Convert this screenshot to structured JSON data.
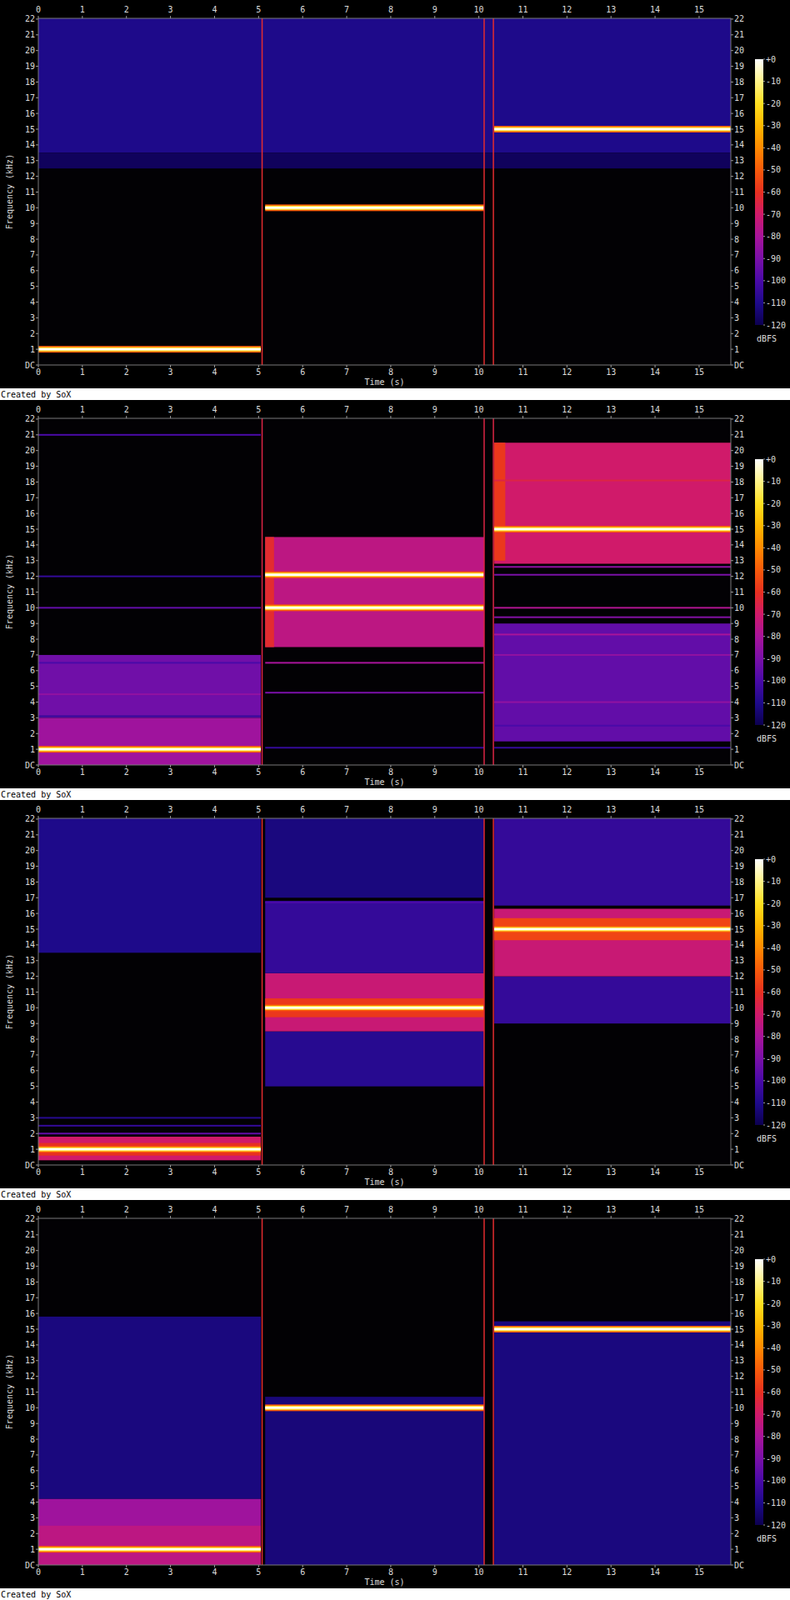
{
  "chart_data": [
    {
      "type": "spectrogram",
      "xlabel": "Time (s)",
      "ylabel": "Frequency (kHz)",
      "annotation": "Created by SoX",
      "xlim": [
        0,
        15.72
      ],
      "ylim": [
        0,
        22.05
      ],
      "xticks": [
        0,
        1,
        2,
        3,
        4,
        5,
        6,
        7,
        8,
        9,
        10,
        11,
        12,
        13,
        14,
        15
      ],
      "yticks": [
        {
          "value": 0,
          "label": "DC"
        },
        1,
        2,
        3,
        4,
        5,
        6,
        7,
        8,
        9,
        10,
        11,
        12,
        13,
        14,
        15,
        16,
        17,
        18,
        19,
        20,
        21,
        22
      ],
      "colorbar": {
        "label": "dBFS",
        "range": [
          -120,
          0
        ],
        "ticks": [
          {
            "value": 0,
            "label": "+0"
          },
          -10,
          -20,
          -30,
          -40,
          -50,
          -60,
          -70,
          -80,
          -90,
          -100,
          -110,
          -120
        ]
      },
      "noise": [
        {
          "start": 0,
          "end": 15.72,
          "low": 13.5,
          "high": 22.05,
          "level": -110
        },
        {
          "start": 0,
          "end": 15.72,
          "low": 12.5,
          "high": 13.5,
          "level": -118
        }
      ],
      "tones": [
        {
          "start": 0,
          "end": 5.05,
          "freq": 1,
          "level": 0
        },
        {
          "start": 5.15,
          "end": 10.12,
          "freq": 10,
          "level": 0
        },
        {
          "start": 10.35,
          "end": 15.72,
          "freq": 15,
          "level": 0
        }
      ],
      "transients": [
        {
          "time": 5.08,
          "low": 0,
          "high": 22.05,
          "level": -62
        },
        {
          "time": 10.12,
          "low": 0,
          "high": 22.05,
          "level": -62
        },
        {
          "time": 10.33,
          "low": 0,
          "high": 22.05,
          "level": -62
        }
      ]
    },
    {
      "type": "spectrogram",
      "xlabel": "Time (s)",
      "ylabel": "Frequency (kHz)",
      "annotation": "Created by SoX",
      "xlim": [
        0,
        15.72
      ],
      "ylim": [
        0,
        22.05
      ],
      "xticks": [
        0,
        1,
        2,
        3,
        4,
        5,
        6,
        7,
        8,
        9,
        10,
        11,
        12,
        13,
        14,
        15
      ],
      "yticks": [
        {
          "value": 0,
          "label": "DC"
        },
        1,
        2,
        3,
        4,
        5,
        6,
        7,
        8,
        9,
        10,
        11,
        12,
        13,
        14,
        15,
        16,
        17,
        18,
        19,
        20,
        21,
        22
      ],
      "colorbar": {
        "label": "dBFS",
        "range": [
          -120,
          0
        ],
        "ticks": [
          {
            "value": 0,
            "label": "+0"
          },
          -10,
          -20,
          -30,
          -40,
          -50,
          -60,
          -70,
          -80,
          -90,
          -100,
          -110,
          -120
        ]
      },
      "noise": [
        {
          "start": 0,
          "end": 5.05,
          "low": 0,
          "high": 3,
          "level": -82
        },
        {
          "start": 0,
          "end": 5.05,
          "low": 3,
          "high": 7,
          "level": -92
        },
        {
          "start": 5.15,
          "end": 10.12,
          "low": 7.5,
          "high": 14.5,
          "level": -75
        },
        {
          "start": 5.15,
          "end": 5.35,
          "low": 7.5,
          "high": 14.5,
          "level": -62
        },
        {
          "start": 10.35,
          "end": 15.72,
          "low": 12.8,
          "high": 20.5,
          "level": -70
        },
        {
          "start": 10.35,
          "end": 10.6,
          "low": 13,
          "high": 20.5,
          "level": -58
        },
        {
          "start": 10.35,
          "end": 15.72,
          "low": 1.5,
          "high": 9,
          "level": -95
        }
      ],
      "tones": [
        {
          "start": 0,
          "end": 5.05,
          "freq": 1,
          "level": 0
        },
        {
          "start": 0,
          "end": 5.05,
          "freq": 21,
          "level": -100
        },
        {
          "start": 0,
          "end": 5.05,
          "freq": 12,
          "level": -105
        },
        {
          "start": 0,
          "end": 5.05,
          "freq": 10,
          "level": -95
        },
        {
          "start": 0,
          "end": 5.05,
          "freq": 6.5,
          "level": -100
        },
        {
          "start": 0,
          "end": 5.05,
          "freq": 4.5,
          "level": -85
        },
        {
          "start": 0,
          "end": 5.05,
          "freq": 3.1,
          "level": -105
        },
        {
          "start": 5.15,
          "end": 10.12,
          "freq": 12.1,
          "level": 0
        },
        {
          "start": 5.15,
          "end": 10.12,
          "freq": 10,
          "level": 0
        },
        {
          "start": 5.15,
          "end": 10.12,
          "freq": 6.5,
          "level": -80
        },
        {
          "start": 5.15,
          "end": 10.12,
          "freq": 4.6,
          "level": -90
        },
        {
          "start": 5.15,
          "end": 10.12,
          "freq": 1.1,
          "level": -105
        },
        {
          "start": 10.35,
          "end": 15.72,
          "freq": 15,
          "level": 0
        },
        {
          "start": 10.35,
          "end": 15.72,
          "freq": 18.1,
          "level": -65
        },
        {
          "start": 10.35,
          "end": 15.72,
          "freq": 12.6,
          "level": -85
        },
        {
          "start": 10.35,
          "end": 15.72,
          "freq": 12.1,
          "level": -90
        },
        {
          "start": 10.35,
          "end": 15.72,
          "freq": 10,
          "level": -78
        },
        {
          "start": 10.35,
          "end": 15.72,
          "freq": 9.4,
          "level": -88
        },
        {
          "start": 10.35,
          "end": 15.72,
          "freq": 8.3,
          "level": -80
        },
        {
          "start": 10.35,
          "end": 15.72,
          "freq": 7,
          "level": -85
        },
        {
          "start": 10.35,
          "end": 15.72,
          "freq": 4,
          "level": -85
        },
        {
          "start": 10.35,
          "end": 15.72,
          "freq": 2.5,
          "level": -100
        },
        {
          "start": 10.35,
          "end": 15.72,
          "freq": 1.1,
          "level": -105
        }
      ],
      "transients": [
        {
          "time": 5.08,
          "low": 0,
          "high": 22.05,
          "level": -65
        },
        {
          "time": 10.12,
          "low": 0,
          "high": 22.05,
          "level": -65
        },
        {
          "time": 10.33,
          "low": 0,
          "high": 22.05,
          "level": -65
        }
      ]
    },
    {
      "type": "spectrogram",
      "xlabel": "Time (s)",
      "ylabel": "Frequency (kHz)",
      "annotation": "Created by SoX",
      "xlim": [
        0,
        15.72
      ],
      "ylim": [
        0,
        22.05
      ],
      "xticks": [
        0,
        1,
        2,
        3,
        4,
        5,
        6,
        7,
        8,
        9,
        10,
        11,
        12,
        13,
        14,
        15
      ],
      "yticks": [
        {
          "value": 0,
          "label": "DC"
        },
        1,
        2,
        3,
        4,
        5,
        6,
        7,
        8,
        9,
        10,
        11,
        12,
        13,
        14,
        15,
        16,
        17,
        18,
        19,
        20,
        21,
        22
      ],
      "colorbar": {
        "label": "dBFS",
        "range": [
          -120,
          0
        ],
        "ticks": [
          {
            "value": 0,
            "label": "+0"
          },
          -10,
          -20,
          -30,
          -40,
          -50,
          -60,
          -70,
          -80,
          -90,
          -100,
          -110,
          -120
        ]
      },
      "noise": [
        {
          "start": 0,
          "end": 5.05,
          "low": 13.5,
          "high": 22.05,
          "level": -110
        },
        {
          "start": 5.15,
          "end": 10.12,
          "low": 17,
          "high": 22.05,
          "level": -112
        },
        {
          "start": 10.35,
          "end": 15.72,
          "low": 16.5,
          "high": 22.05,
          "level": -105
        },
        {
          "start": 0,
          "end": 5.05,
          "low": 0.3,
          "high": 1.8,
          "level": -70
        },
        {
          "start": 0,
          "end": 5.05,
          "low": 0.6,
          "high": 1.4,
          "level": -60
        },
        {
          "start": 5.15,
          "end": 10.12,
          "low": 5,
          "high": 8.5,
          "level": -108
        },
        {
          "start": 5.15,
          "end": 10.12,
          "low": 8.5,
          "high": 12.2,
          "level": -72
        },
        {
          "start": 5.15,
          "end": 10.12,
          "low": 9.4,
          "high": 10.6,
          "level": -58
        },
        {
          "start": 5.15,
          "end": 10.12,
          "low": 12.2,
          "high": 16.8,
          "level": -105
        },
        {
          "start": 10.35,
          "end": 15.72,
          "low": 9,
          "high": 12,
          "level": -105
        },
        {
          "start": 10.35,
          "end": 15.72,
          "low": 12,
          "high": 16.3,
          "level": -72
        },
        {
          "start": 10.35,
          "end": 15.72,
          "low": 14.3,
          "high": 15.7,
          "level": -55
        }
      ],
      "tones": [
        {
          "start": 0,
          "end": 5.05,
          "freq": 1,
          "level": 0
        },
        {
          "start": 0,
          "end": 5.05,
          "freq": 2,
          "level": -95
        },
        {
          "start": 0,
          "end": 5.05,
          "freq": 2.5,
          "level": -105
        },
        {
          "start": 0,
          "end": 5.05,
          "freq": 3,
          "level": -108
        },
        {
          "start": 5.15,
          "end": 10.12,
          "freq": 10,
          "level": 0
        },
        {
          "start": 5.15,
          "end": 10.12,
          "freq": 16.7,
          "level": -100
        },
        {
          "start": 10.35,
          "end": 15.72,
          "freq": 15,
          "level": 0
        }
      ],
      "transients": [
        {
          "time": 5.08,
          "low": 0,
          "high": 22.05,
          "level": -62
        },
        {
          "time": 10.12,
          "low": 0,
          "high": 22.05,
          "level": -62
        },
        {
          "time": 10.33,
          "low": 0,
          "high": 22.05,
          "level": -62
        }
      ]
    },
    {
      "type": "spectrogram",
      "xlabel": "Time (s)",
      "ylabel": "Frequency (kHz)",
      "annotation": "Created by SoX",
      "xlim": [
        0,
        15.72
      ],
      "ylim": [
        0,
        22.05
      ],
      "xticks": [
        0,
        1,
        2,
        3,
        4,
        5,
        6,
        7,
        8,
        9,
        10,
        11,
        12,
        13,
        14,
        15
      ],
      "yticks": [
        {
          "value": 0,
          "label": "DC"
        },
        1,
        2,
        3,
        4,
        5,
        6,
        7,
        8,
        9,
        10,
        11,
        12,
        13,
        14,
        15,
        16,
        17,
        18,
        19,
        20,
        21,
        22
      ],
      "colorbar": {
        "label": "dBFS",
        "range": [
          -120,
          0
        ],
        "ticks": [
          {
            "value": 0,
            "label": "+0"
          },
          -10,
          -20,
          -30,
          -40,
          -50,
          -60,
          -70,
          -80,
          -90,
          -100,
          -110,
          -120
        ]
      },
      "noise": [
        {
          "start": 0,
          "end": 5.05,
          "low": 4.2,
          "high": 15.8,
          "level": -112
        },
        {
          "start": 0,
          "end": 5.05,
          "low": 0,
          "high": 4.2,
          "level": -82
        },
        {
          "start": 0,
          "end": 5.05,
          "low": 0,
          "high": 2.5,
          "level": -75
        },
        {
          "start": 5.15,
          "end": 10.12,
          "low": 0,
          "high": 10.7,
          "level": -113
        },
        {
          "start": 10.35,
          "end": 15.72,
          "low": 0,
          "high": 15.5,
          "level": -112
        }
      ],
      "tones": [
        {
          "start": 0,
          "end": 5.05,
          "freq": 1,
          "level": 0
        },
        {
          "start": 5.15,
          "end": 10.12,
          "freq": 10,
          "level": 0
        },
        {
          "start": 10.35,
          "end": 15.72,
          "freq": 15,
          "level": 0
        }
      ],
      "transients": [
        {
          "time": 5.08,
          "low": 0,
          "high": 22.05,
          "level": -62
        },
        {
          "time": 10.12,
          "low": 0,
          "high": 22.05,
          "level": -62
        },
        {
          "time": 10.33,
          "low": 0,
          "high": 22.05,
          "level": -62
        }
      ]
    }
  ]
}
